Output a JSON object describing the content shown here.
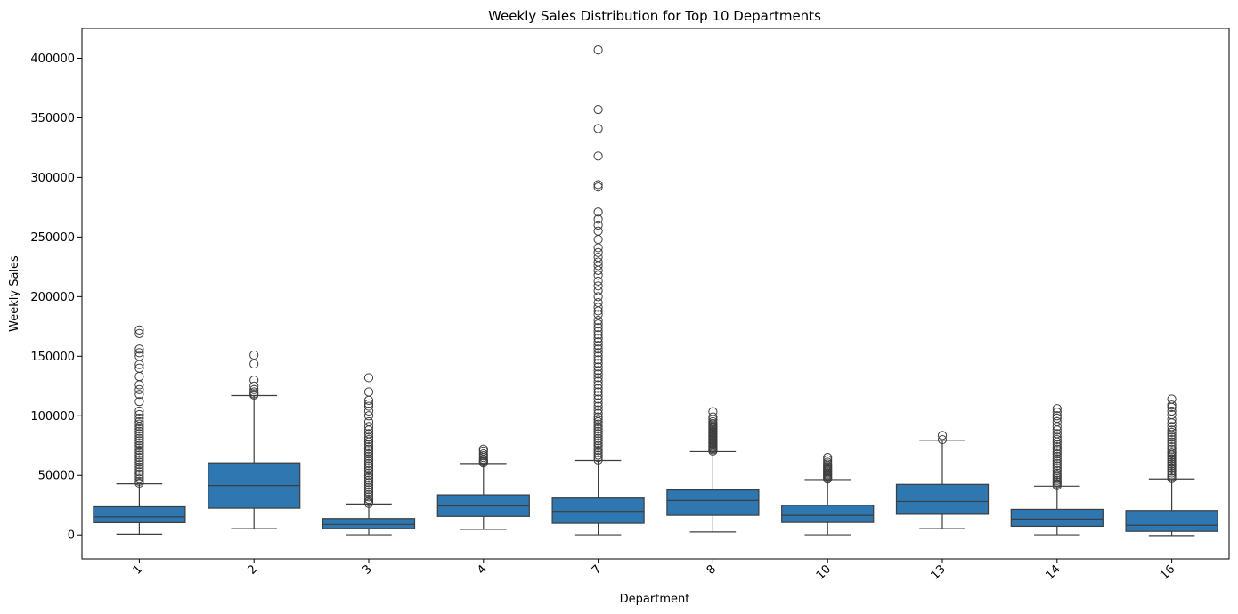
{
  "chart_data": {
    "type": "box",
    "title": "Weekly Sales Distribution for Top 10 Departments",
    "xlabel": "Department",
    "ylabel": "Weekly Sales",
    "ylim": [
      -20000,
      425000
    ],
    "yticks": [
      0,
      50000,
      100000,
      150000,
      200000,
      250000,
      300000,
      350000,
      400000
    ],
    "ytick_labels": [
      "0",
      "50000",
      "100000",
      "150000",
      "200000",
      "250000",
      "300000",
      "350000",
      "400000"
    ],
    "grid": false,
    "legend": "none",
    "categories": [
      "1",
      "2",
      "3",
      "4",
      "7",
      "8",
      "10",
      "13",
      "14",
      "16"
    ],
    "box_color": "#2e77b0",
    "line_color": "#3d3d3d",
    "boxes": [
      {
        "category": "1",
        "whisker_low": 600,
        "q1": 10300,
        "median": 15200,
        "q3": 23700,
        "whisker_high": 43000,
        "outliers": [
          43500,
          45000,
          47000,
          49000,
          51000,
          53000,
          55000,
          57000,
          59000,
          61000,
          63000,
          65000,
          67000,
          69000,
          71000,
          73000,
          75000,
          77000,
          79000,
          81000,
          83000,
          85000,
          87000,
          89000,
          91000,
          93000,
          95000,
          98000,
          101000,
          104000,
          112000,
          118000,
          122000,
          126000,
          133000,
          140000,
          143000,
          150000,
          153000,
          156000,
          169000,
          172000
        ]
      },
      {
        "category": "2",
        "whisker_low": 5300,
        "q1": 22500,
        "median": 41500,
        "q3": 60500,
        "whisker_high": 117000,
        "outliers": [
          117500,
          118500,
          120000,
          122000,
          125000,
          130000,
          143500,
          151000
        ]
      },
      {
        "category": "3",
        "whisker_low": 100,
        "q1": 5300,
        "median": 8900,
        "q3": 13800,
        "whisker_high": 26000,
        "outliers": [
          26500,
          28000,
          30000,
          32000,
          34000,
          36000,
          38000,
          40000,
          42000,
          44000,
          46000,
          48000,
          50000,
          52000,
          54000,
          56000,
          58000,
          60000,
          62000,
          64000,
          66000,
          68000,
          70000,
          72000,
          74000,
          76000,
          78000,
          80000,
          82000,
          85000,
          88000,
          91000,
          95000,
          100000,
          104000,
          108000,
          110000,
          113000,
          120000,
          132000
        ]
      },
      {
        "category": "4",
        "whisker_low": 4700,
        "q1": 15600,
        "median": 24400,
        "q3": 33700,
        "whisker_high": 60000,
        "outliers": [
          60500,
          61500,
          62500,
          63500,
          65000,
          66500,
          68000,
          70500,
          72000
        ]
      },
      {
        "category": "7",
        "whisker_low": 100,
        "q1": 9800,
        "median": 19800,
        "q3": 31000,
        "whisker_high": 62500,
        "outliers": [
          63000,
          65000,
          67000,
          69000,
          71000,
          73000,
          75000,
          77000,
          79000,
          81000,
          83000,
          85000,
          87000,
          89000,
          91000,
          93000,
          95000,
          97000,
          99000,
          102000,
          105000,
          108000,
          111000,
          114000,
          117000,
          120000,
          123000,
          126000,
          129000,
          132000,
          135000,
          138000,
          141000,
          144000,
          147000,
          150000,
          153000,
          156000,
          159000,
          162000,
          165000,
          168000,
          171000,
          174000,
          177000,
          180000,
          185000,
          188000,
          191000,
          195000,
          200000,
          205000,
          209000,
          213000,
          218000,
          222000,
          226000,
          229000,
          233000,
          237000,
          241000,
          248000,
          255000,
          260000,
          265000,
          271000,
          292000,
          294000,
          318000,
          341000,
          357000,
          407000
        ]
      },
      {
        "category": "8",
        "whisker_low": 2500,
        "q1": 16500,
        "median": 29000,
        "q3": 37800,
        "whisker_high": 70000,
        "outliers": [
          70500,
          71500,
          72500,
          73500,
          74500,
          75500,
          76500,
          77500,
          78500,
          79500,
          80500,
          81500,
          82500,
          83500,
          84500,
          85500,
          86500,
          87500,
          88500,
          89500,
          90500,
          91500,
          92500,
          93500,
          95000,
          97000,
          99000,
          103500
        ]
      },
      {
        "category": "10",
        "whisker_low": 100,
        "q1": 10500,
        "median": 16500,
        "q3": 25000,
        "whisker_high": 46500,
        "outliers": [
          47000,
          48000,
          49000,
          50000,
          51000,
          52000,
          53000,
          54000,
          55000,
          56000,
          57000,
          58000,
          59500,
          61000,
          63000,
          65000
        ]
      },
      {
        "category": "13",
        "whisker_low": 5300,
        "q1": 17400,
        "median": 28200,
        "q3": 42500,
        "whisker_high": 79500,
        "outliers": [
          80000,
          83500
        ]
      },
      {
        "category": "14",
        "whisker_low": 100,
        "q1": 7300,
        "median": 13300,
        "q3": 21500,
        "whisker_high": 41000,
        "outliers": [
          41500,
          43000,
          44500,
          46000,
          47500,
          49000,
          50500,
          52000,
          54000,
          56000,
          58000,
          60000,
          62000,
          64000,
          66000,
          68000,
          70000,
          72000,
          74000,
          76000,
          78000,
          80000,
          82000,
          85000,
          88000,
          91000,
          95000,
          98000,
          100000,
          103000,
          106000
        ]
      },
      {
        "category": "16",
        "whisker_low": -500,
        "q1": 3000,
        "median": 8200,
        "q3": 20500,
        "whisker_high": 47000,
        "outliers": [
          47500,
          49000,
          50500,
          52000,
          53500,
          55000,
          56500,
          58000,
          59500,
          61000,
          62500,
          64000,
          65500,
          67000,
          68500,
          70000,
          72000,
          74000,
          76000,
          78000,
          80000,
          82000,
          84000,
          86000,
          88000,
          91000,
          94000,
          97000,
          101000,
          104000,
          107000,
          109000,
          114000
        ]
      }
    ]
  }
}
